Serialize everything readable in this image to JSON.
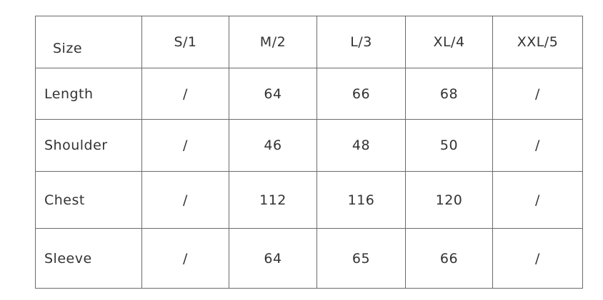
{
  "table": {
    "header": [
      "Size",
      "S/1",
      "M/2",
      "L/3",
      "XL/4",
      "XXL/5"
    ],
    "rows": [
      [
        "Length",
        "/",
        "64",
        "66",
        "68",
        "/"
      ],
      [
        "Shoulder",
        "/",
        "46",
        "48",
        "50",
        "/"
      ],
      [
        "Chest",
        "/",
        "112",
        "116",
        "120",
        "/"
      ],
      [
        "Sleeve",
        "/",
        "64",
        "65",
        "66",
        "/"
      ]
    ]
  }
}
